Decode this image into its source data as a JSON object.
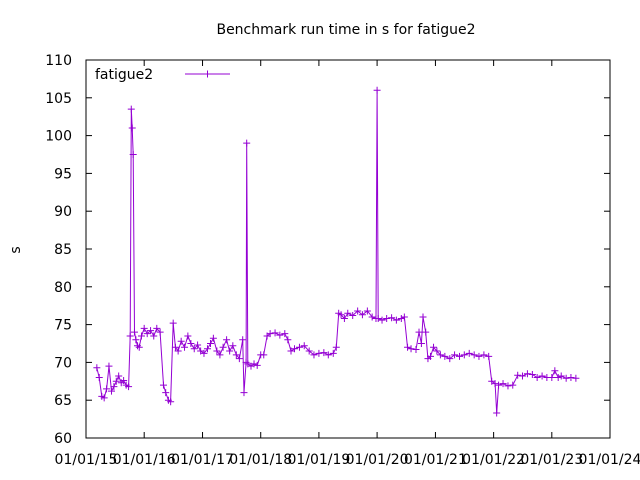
{
  "chart_data": {
    "type": "line",
    "title": "Benchmark run time in s for fatigue2",
    "xlabel": "",
    "ylabel": "s",
    "ylim": [
      60,
      110
    ],
    "y_ticks": [
      60,
      65,
      70,
      75,
      80,
      85,
      90,
      95,
      100,
      105,
      110
    ],
    "xlim": [
      "2015-01-01",
      "2024-01-01"
    ],
    "x_ticks": [
      "01/01/15",
      "01/01/16",
      "01/01/17",
      "01/01/18",
      "01/01/19",
      "01/01/20",
      "01/01/21",
      "01/01/22",
      "01/01/23",
      "01/01/24"
    ],
    "grid": false,
    "legend_position": "top-left",
    "series": [
      {
        "name": "fatigue2",
        "color": "#9400d3",
        "marker": "plus",
        "points": [
          [
            "2015-03-10",
            69.3
          ],
          [
            "2015-03-25",
            68.0
          ],
          [
            "2015-04-10",
            65.5
          ],
          [
            "2015-04-25",
            65.3
          ],
          [
            "2015-05-10",
            66.5
          ],
          [
            "2015-05-25",
            69.5
          ],
          [
            "2015-06-10",
            66.2
          ],
          [
            "2015-06-25",
            66.8
          ],
          [
            "2015-07-10",
            67.5
          ],
          [
            "2015-07-25",
            68.2
          ],
          [
            "2015-08-10",
            67.3
          ],
          [
            "2015-08-25",
            67.6
          ],
          [
            "2015-09-10",
            67.0
          ],
          [
            "2015-09-25",
            66.8
          ],
          [
            "2015-10-05",
            73.5
          ],
          [
            "2015-10-12",
            103.5
          ],
          [
            "2015-10-18",
            101.0
          ],
          [
            "2015-10-24",
            97.5
          ],
          [
            "2015-11-01",
            74.0
          ],
          [
            "2015-11-10",
            73.0
          ],
          [
            "2015-11-20",
            72.2
          ],
          [
            "2015-12-01",
            72.0
          ],
          [
            "2015-12-15",
            73.5
          ],
          [
            "2016-01-01",
            74.5
          ],
          [
            "2016-01-20",
            73.8
          ],
          [
            "2016-02-10",
            74.2
          ],
          [
            "2016-03-01",
            73.5
          ],
          [
            "2016-03-20",
            74.5
          ],
          [
            "2016-04-10",
            74.0
          ],
          [
            "2016-05-01",
            67.0
          ],
          [
            "2016-05-15",
            66.0
          ],
          [
            "2016-06-01",
            65.0
          ],
          [
            "2016-06-15",
            64.8
          ],
          [
            "2016-07-01",
            75.2
          ],
          [
            "2016-07-15",
            72.0
          ],
          [
            "2016-08-01",
            71.5
          ],
          [
            "2016-08-20",
            72.8
          ],
          [
            "2016-09-10",
            72.0
          ],
          [
            "2016-10-01",
            73.5
          ],
          [
            "2016-10-20",
            72.5
          ],
          [
            "2016-11-10",
            71.8
          ],
          [
            "2016-12-01",
            72.3
          ],
          [
            "2016-12-20",
            71.5
          ],
          [
            "2017-01-10",
            71.2
          ],
          [
            "2017-02-01",
            71.8
          ],
          [
            "2017-02-20",
            72.5
          ],
          [
            "2017-03-10",
            73.2
          ],
          [
            "2017-04-01",
            71.5
          ],
          [
            "2017-04-20",
            71.0
          ],
          [
            "2017-05-10",
            72.0
          ],
          [
            "2017-06-01",
            73.0
          ],
          [
            "2017-06-20",
            71.5
          ],
          [
            "2017-07-10",
            72.2
          ],
          [
            "2017-08-01",
            71.0
          ],
          [
            "2017-08-20",
            70.5
          ],
          [
            "2017-09-10",
            73.0
          ],
          [
            "2017-09-18",
            66.0
          ],
          [
            "2017-10-01",
            70.0
          ],
          [
            "2017-10-05",
            99.0
          ],
          [
            "2017-10-12",
            69.8
          ],
          [
            "2017-11-01",
            69.5
          ],
          [
            "2017-11-20",
            69.8
          ],
          [
            "2017-12-10",
            69.6
          ],
          [
            "2018-01-01",
            71.0
          ],
          [
            "2018-01-20",
            71.0
          ],
          [
            "2018-02-10",
            73.5
          ],
          [
            "2018-03-01",
            73.8
          ],
          [
            "2018-04-01",
            73.9
          ],
          [
            "2018-05-01",
            73.6
          ],
          [
            "2018-06-01",
            73.8
          ],
          [
            "2018-06-20",
            73.0
          ],
          [
            "2018-07-10",
            71.5
          ],
          [
            "2018-08-01",
            71.8
          ],
          [
            "2018-09-01",
            72.0
          ],
          [
            "2018-10-01",
            72.2
          ],
          [
            "2018-11-01",
            71.5
          ],
          [
            "2018-12-01",
            71.0
          ],
          [
            "2019-01-01",
            71.2
          ],
          [
            "2019-02-01",
            71.3
          ],
          [
            "2019-03-01",
            71.0
          ],
          [
            "2019-04-01",
            71.2
          ],
          [
            "2019-04-20",
            72.0
          ],
          [
            "2019-05-05",
            76.5
          ],
          [
            "2019-05-20",
            76.3
          ],
          [
            "2019-06-10",
            75.8
          ],
          [
            "2019-07-01",
            76.5
          ],
          [
            "2019-08-01",
            76.2
          ],
          [
            "2019-09-01",
            76.8
          ],
          [
            "2019-10-01",
            76.3
          ],
          [
            "2019-11-01",
            76.8
          ],
          [
            "2019-12-01",
            76.0
          ],
          [
            "2019-12-25",
            75.8
          ],
          [
            "2020-01-01",
            106.0
          ],
          [
            "2020-01-08",
            75.8
          ],
          [
            "2020-02-01",
            75.6
          ],
          [
            "2020-03-01",
            75.8
          ],
          [
            "2020-04-01",
            75.9
          ],
          [
            "2020-05-01",
            75.6
          ],
          [
            "2020-06-01",
            75.8
          ],
          [
            "2020-06-20",
            76.0
          ],
          [
            "2020-07-10",
            72.0
          ],
          [
            "2020-08-01",
            71.8
          ],
          [
            "2020-09-01",
            71.7
          ],
          [
            "2020-09-20",
            74.0
          ],
          [
            "2020-10-05",
            72.5
          ],
          [
            "2020-10-15",
            76.0
          ],
          [
            "2020-11-01",
            74.0
          ],
          [
            "2020-11-15",
            70.5
          ],
          [
            "2020-12-01",
            70.8
          ],
          [
            "2020-12-20",
            72.0
          ],
          [
            "2021-01-10",
            71.5
          ],
          [
            "2021-02-01",
            71.0
          ],
          [
            "2021-03-01",
            70.8
          ],
          [
            "2021-04-01",
            70.5
          ],
          [
            "2021-05-01",
            71.0
          ],
          [
            "2021-06-01",
            70.8
          ],
          [
            "2021-07-01",
            71.0
          ],
          [
            "2021-08-01",
            71.2
          ],
          [
            "2021-09-01",
            71.0
          ],
          [
            "2021-10-01",
            70.8
          ],
          [
            "2021-11-01",
            71.0
          ],
          [
            "2021-12-01",
            70.8
          ],
          [
            "2021-12-20",
            67.5
          ],
          [
            "2022-01-10",
            67.2
          ],
          [
            "2022-01-20",
            63.3
          ],
          [
            "2022-02-01",
            67.0
          ],
          [
            "2022-03-01",
            67.2
          ],
          [
            "2022-04-01",
            66.9
          ],
          [
            "2022-05-01",
            67.0
          ],
          [
            "2022-06-01",
            68.3
          ],
          [
            "2022-07-01",
            68.2
          ],
          [
            "2022-08-01",
            68.5
          ],
          [
            "2022-09-01",
            68.4
          ],
          [
            "2022-10-01",
            68.0
          ],
          [
            "2022-11-01",
            68.2
          ],
          [
            "2022-12-01",
            68.0
          ],
          [
            "2023-01-01",
            68.0
          ],
          [
            "2023-01-20",
            68.9
          ],
          [
            "2023-02-10",
            68.0
          ],
          [
            "2023-03-01",
            68.2
          ],
          [
            "2023-04-01",
            67.9
          ],
          [
            "2023-05-01",
            68.0
          ],
          [
            "2023-06-01",
            67.9
          ]
        ]
      }
    ]
  }
}
